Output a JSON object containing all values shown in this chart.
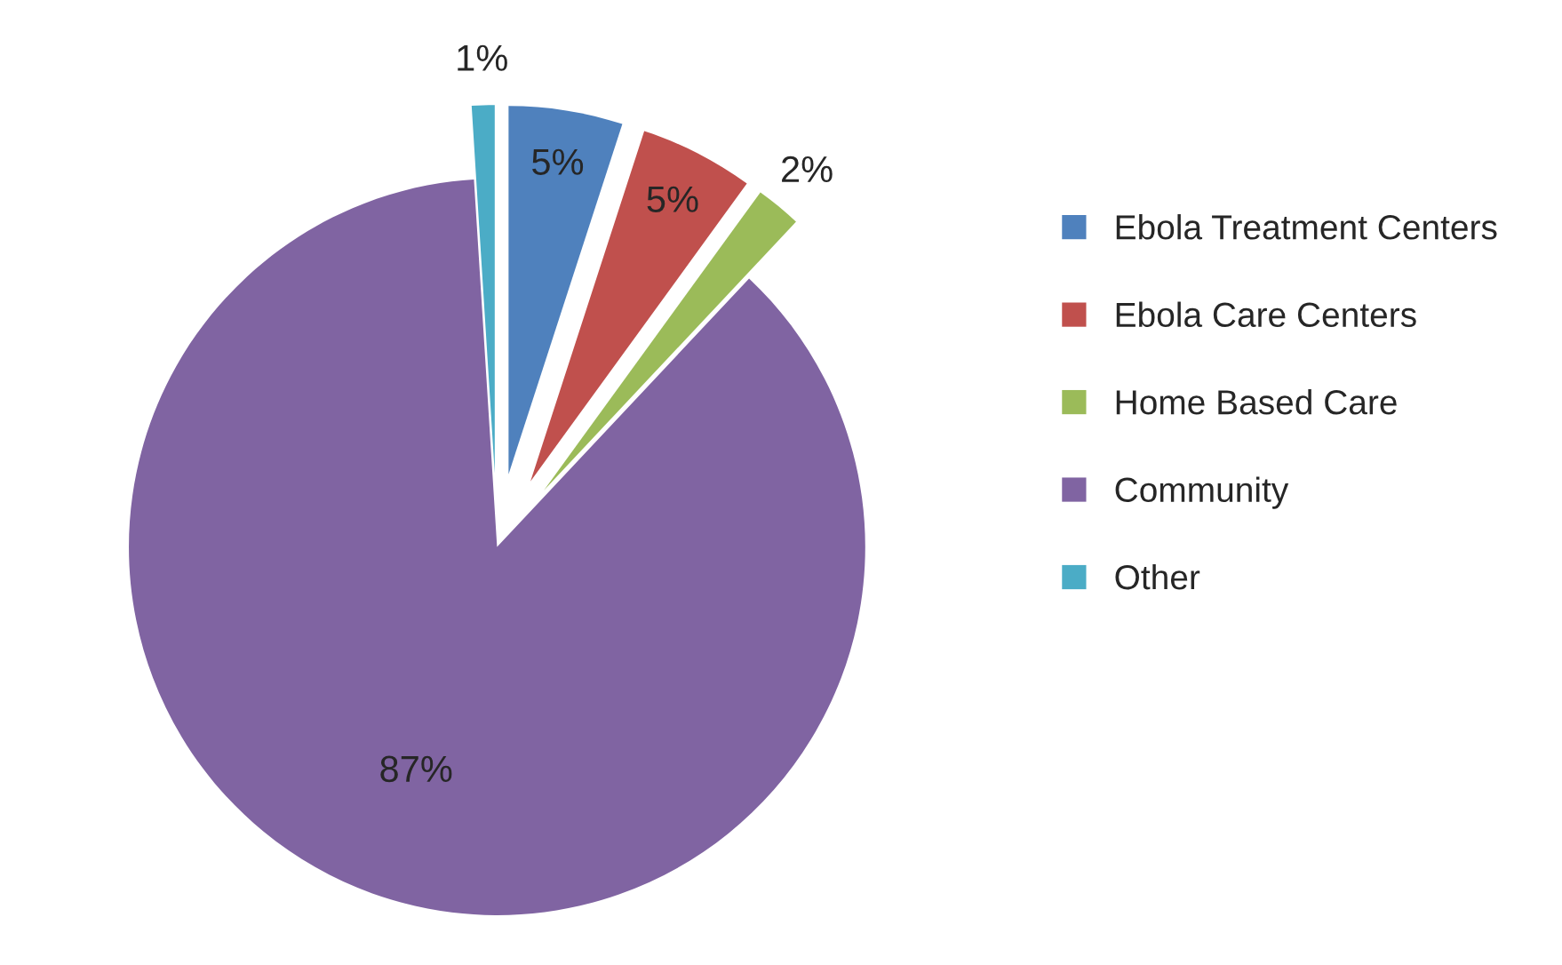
{
  "chart_data": {
    "type": "pie",
    "categories": [
      "Ebola Treatment Centers",
      "Ebola Care Centers",
      "Home Based Care",
      "Community",
      "Other"
    ],
    "values": [
      5,
      5,
      2,
      87,
      1
    ],
    "value_labels": [
      "5%",
      "5%",
      "2%",
      "87%",
      "1%"
    ],
    "colors": [
      "#4f81bd",
      "#c0504d",
      "#9bbb59",
      "#8064a2",
      "#4bacc6"
    ],
    "legend": "right"
  }
}
